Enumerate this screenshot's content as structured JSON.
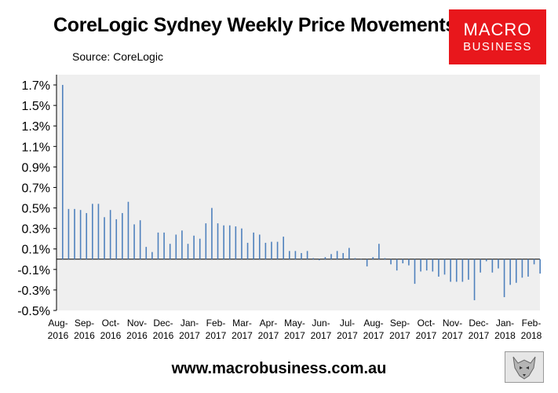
{
  "title": "CoreLogic Sydney Weekly Price Movements",
  "source": "Source: CoreLogic",
  "logo": {
    "line1": "MACRO",
    "line2": "BUSINESS",
    "color": "#e8171c"
  },
  "footer": {
    "url": "www.macrobusiness.com.au"
  },
  "icons": {
    "mascot": "fox-mascot-icon"
  },
  "chart_data": {
    "type": "bar",
    "ylim": [
      -0.5,
      1.8
    ],
    "yticks": [
      1.7,
      1.5,
      1.3,
      1.1,
      0.9,
      0.7,
      0.5,
      0.3,
      0.1,
      -0.1,
      -0.3,
      -0.5
    ],
    "ytick_labels": [
      "1.7%",
      "1.5%",
      "1.3%",
      "1.1%",
      "0.9%",
      "0.7%",
      "0.5%",
      "0.3%",
      "0.1%",
      "-0.1%",
      "-0.3%",
      "-0.5%"
    ],
    "xtick_labels": [
      [
        "Aug-",
        "2016"
      ],
      [
        "Sep-",
        "2016"
      ],
      [
        "Oct-",
        "2016"
      ],
      [
        "Nov-",
        "2016"
      ],
      [
        "Dec-",
        "2016"
      ],
      [
        "Jan-",
        "2017"
      ],
      [
        "Feb-",
        "2017"
      ],
      [
        "Mar-",
        "2017"
      ],
      [
        "Apr-",
        "2017"
      ],
      [
        "May-",
        "2017"
      ],
      [
        "Jun-",
        "2017"
      ],
      [
        "Jul-",
        "2017"
      ],
      [
        "Aug-",
        "2017"
      ],
      [
        "Sep-",
        "2017"
      ],
      [
        "Oct-",
        "2017"
      ],
      [
        "Nov-",
        "2017"
      ],
      [
        "Dec-",
        "2017"
      ],
      [
        "Jan-",
        "2018"
      ],
      [
        "Feb-",
        "2018"
      ]
    ],
    "values": [
      1.7,
      0.49,
      0.49,
      0.48,
      0.45,
      0.54,
      0.54,
      0.41,
      0.48,
      0.39,
      0.45,
      0.56,
      0.34,
      0.38,
      0.12,
      0.07,
      0.26,
      0.26,
      0.15,
      0.24,
      0.28,
      0.15,
      0.23,
      0.2,
      0.35,
      0.5,
      0.35,
      0.33,
      0.33,
      0.32,
      0.3,
      0.16,
      0.26,
      0.24,
      0.16,
      0.17,
      0.17,
      0.22,
      0.08,
      0.08,
      0.06,
      0.08,
      0.01,
      -0.01,
      0.02,
      0.05,
      0.08,
      0.06,
      0.11,
      0.01,
      0.0,
      -0.07,
      0.02,
      0.15,
      0.01,
      -0.05,
      -0.11,
      -0.04,
      -0.06,
      -0.24,
      -0.12,
      -0.11,
      -0.12,
      -0.17,
      -0.15,
      -0.22,
      -0.22,
      -0.22,
      -0.2,
      -0.4,
      -0.13,
      -0.02,
      -0.13,
      -0.09,
      -0.37,
      -0.25,
      -0.23,
      -0.18,
      -0.17,
      -0.05,
      -0.14
    ],
    "bar_color": "#4f81bd",
    "plot_background": "#efefef",
    "grid": false,
    "legend": "none"
  }
}
